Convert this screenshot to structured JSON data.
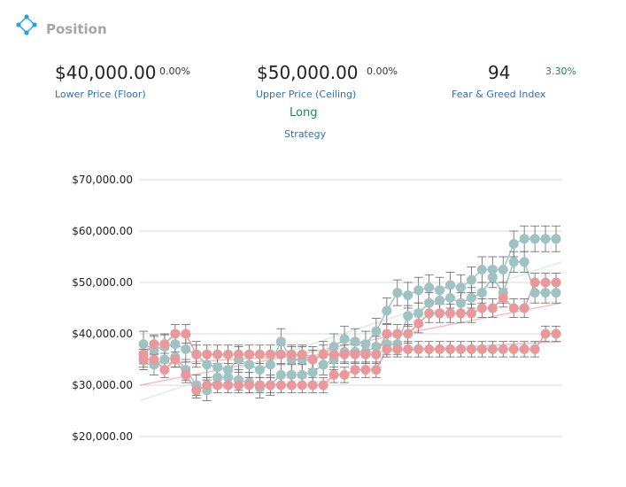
{
  "header": {
    "title": "Position",
    "logo_icon": "diamond-network-icon"
  },
  "stats": {
    "lower_price": {
      "value": "$40,000.00",
      "change": "0.00%",
      "label": "Lower Price (Floor)"
    },
    "upper_price": {
      "value": "$50,000.00",
      "change": "0.00%",
      "label": "Upper Price (Ceiling)"
    },
    "fear_greed": {
      "value": "94",
      "change": "3.30%",
      "label": "Fear & Greed Index"
    },
    "strategy": {
      "value": "Long",
      "label": "Strategy"
    }
  },
  "colors": {
    "teal": "#9fc3c3",
    "pink": "#e9999b",
    "accent_green": "#1f8a4c",
    "link_blue": "#2e6fb7"
  },
  "chart_data": {
    "type": "line",
    "ylim": [
      20000,
      70000
    ],
    "yticks": [
      "$70,000.00",
      "$60,000.00",
      "$50,000.00",
      "$40,000.00",
      "$30,000.00",
      "$20,000.00"
    ],
    "ytick_values": [
      70000,
      60000,
      50000,
      40000,
      30000,
      20000
    ],
    "grid": true,
    "n_points": 40,
    "series": [
      {
        "color": "#9fc3c3",
        "error": 2500,
        "values": [
          38000,
          37000,
          37500,
          38000,
          37000,
          36000,
          34000,
          33500,
          33000,
          35000,
          34000,
          33000,
          34000,
          38500,
          35000,
          35000,
          35000,
          36000,
          37500,
          39000,
          38500,
          38000,
          40500,
          44500,
          48000,
          47500,
          48500,
          49000,
          48500,
          49500,
          49000,
          50500,
          52500,
          52500,
          52500,
          57500,
          58500,
          58500,
          58500,
          58500
        ]
      },
      {
        "color": "#9fc3c3",
        "error": 2000,
        "values": [
          35000,
          34000,
          35000,
          35500,
          33000,
          30000,
          29000,
          31500,
          31500,
          31000,
          30500,
          29500,
          30000,
          32000,
          32000,
          32000,
          32500,
          34000,
          35000,
          36500,
          36500,
          36500,
          37500,
          38000,
          38000,
          43500,
          44000,
          46000,
          46500,
          47000,
          46000,
          47000,
          48000,
          51000,
          48000,
          54000,
          54000,
          48000,
          48000,
          48000
        ]
      },
      {
        "color": "#e9999b",
        "error": 1800,
        "values": [
          36000,
          38000,
          38000,
          40000,
          40000,
          36000,
          36000,
          36000,
          36000,
          36000,
          36000,
          36000,
          36000,
          36000,
          36000,
          36000,
          35000,
          36000,
          36000,
          36000,
          36000,
          36000,
          36000,
          40000,
          40000,
          40000,
          42000,
          44000,
          44000,
          44000,
          44000,
          44000,
          45000,
          45000,
          47000,
          45000,
          45000,
          50000,
          50000,
          50000
        ]
      },
      {
        "color": "#e9999b",
        "error": 1500,
        "values": [
          35000,
          35000,
          33000,
          35000,
          32000,
          29000,
          30000,
          30000,
          30000,
          30000,
          30000,
          30000,
          30000,
          30000,
          30000,
          30000,
          30000,
          30000,
          32000,
          32000,
          33000,
          33000,
          33000,
          37000,
          37000,
          37000,
          37000,
          37000,
          37000,
          37000,
          37000,
          37000,
          37000,
          37000,
          37000,
          37000,
          37000,
          37000,
          40000,
          40000
        ]
      }
    ],
    "trendlines": [
      {
        "color": "#e9999b",
        "from": 30000,
        "to": 46000
      },
      {
        "color": "#e9999b",
        "from": 34000,
        "to": 38500
      },
      {
        "color": "#cfdcdc",
        "from": 27000,
        "to": 54000
      }
    ]
  }
}
